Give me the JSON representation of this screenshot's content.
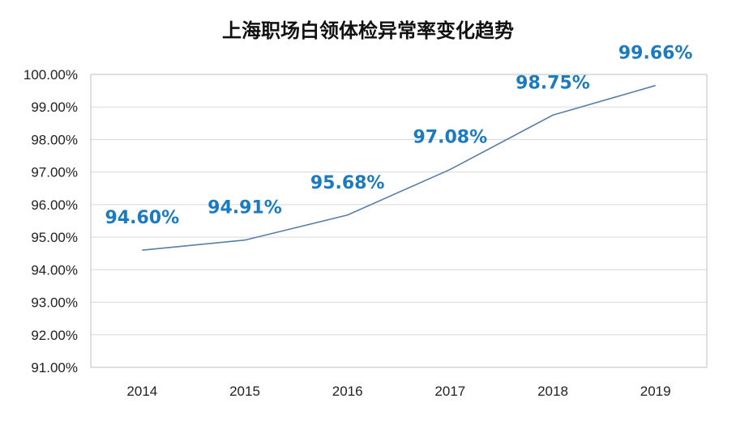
{
  "chart_data": {
    "type": "line",
    "title": "上海职场白领体检异常率变化趋势",
    "xlabel": "",
    "ylabel": "",
    "categories": [
      "2014",
      "2015",
      "2016",
      "2017",
      "2018",
      "2019"
    ],
    "series": [
      {
        "values": [
          94.6,
          94.91,
          95.68,
          97.08,
          98.75,
          99.66
        ],
        "labels": [
          "94.60%",
          "94.91%",
          "95.68%",
          "97.08%",
          "98.75%",
          "99.66%"
        ]
      }
    ],
    "ylim": [
      91,
      100
    ],
    "yticks": [
      {
        "value": 100,
        "label": "100.00%"
      },
      {
        "value": 99,
        "label": "99.00%"
      },
      {
        "value": 98,
        "label": "98.00%"
      },
      {
        "value": 97,
        "label": "97.00%"
      },
      {
        "value": 96,
        "label": "96.00%"
      },
      {
        "value": 95,
        "label": "95.00%"
      },
      {
        "value": 94,
        "label": "94.00%"
      },
      {
        "value": 93,
        "label": "93.00%"
      },
      {
        "value": 92,
        "label": "92.00%"
      },
      {
        "value": 91,
        "label": "91.00%"
      }
    ],
    "grid": true,
    "legend": "none",
    "colors": {
      "line": "#5B7DA8",
      "label": "#1B7BC0",
      "grid": "#D9D9D9",
      "axis": "#BFBFBF"
    }
  }
}
